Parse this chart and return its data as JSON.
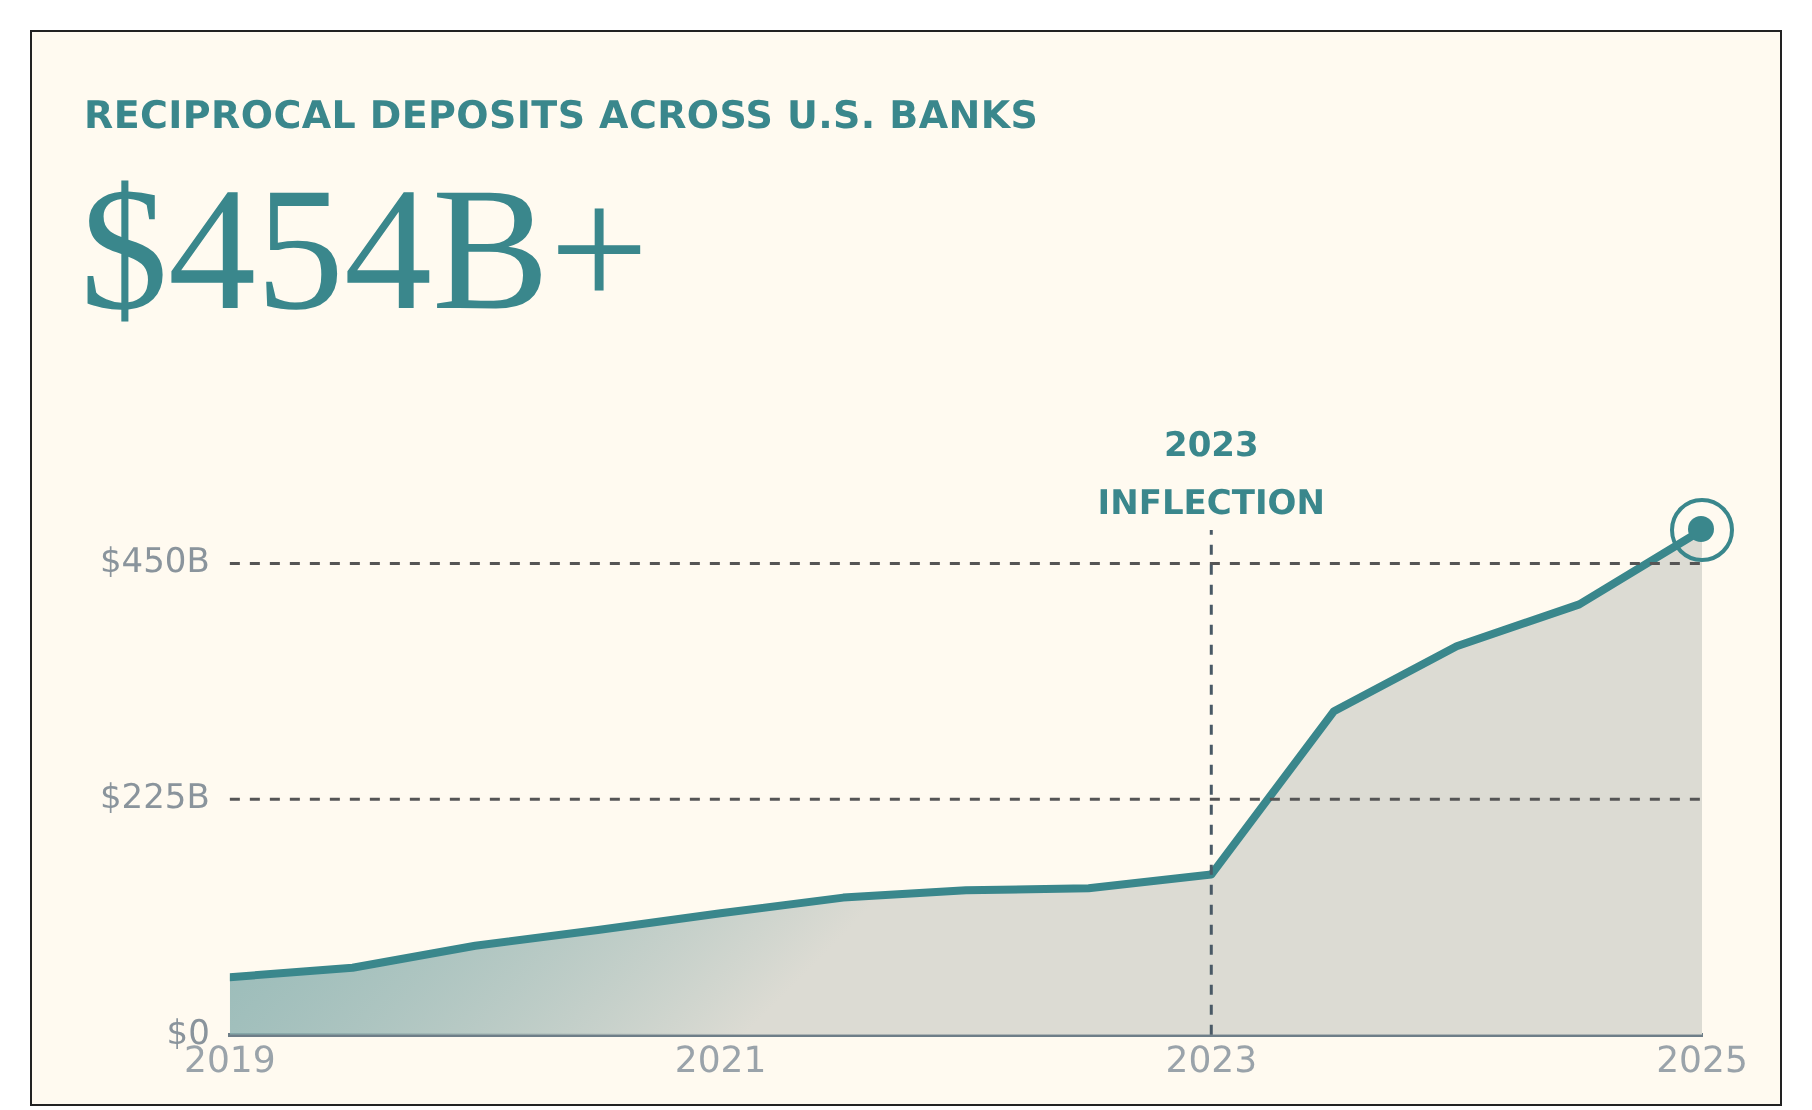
{
  "chart_data": {
    "type": "area",
    "title": "RECIPROCAL DEPOSITS ACROSS U.S. BANKS",
    "subtitle": "$454B+",
    "x": [
      2019,
      2019.5,
      2020,
      2020.5,
      2021,
      2021.5,
      2022,
      2022.5,
      2023,
      2023.5,
      2024,
      2024.5,
      2025
    ],
    "series": [
      {
        "color": "#3a878c",
        "values": [
          55,
          64,
          85,
          100,
          116,
          131,
          138,
          140,
          153,
          309,
          371,
          411,
          482
        ]
      }
    ],
    "xlim": [
      2019,
      2025
    ],
    "xticks": [
      2019,
      2021,
      2023,
      2025
    ],
    "ylim": [
      0,
      482
    ],
    "yticks": [
      {
        "value": 0,
        "label": "$0"
      },
      {
        "value": 225,
        "label": "$225B"
      },
      {
        "value": 450,
        "label": "$450B"
      }
    ],
    "grid": false,
    "line_style": "solid",
    "marker": "none",
    "legend": false,
    "ref_lines": [
      {
        "axis": "y",
        "value": 225,
        "line_style": "dashed",
        "color": "#555555"
      },
      {
        "axis": "y",
        "value": 450,
        "line_style": "dashed",
        "color": "#555555"
      },
      {
        "axis": "x",
        "value": 2023,
        "label": "2023 INFLECTION",
        "line_style": "dashed",
        "color": "#4a5a66"
      }
    ]
  }
}
